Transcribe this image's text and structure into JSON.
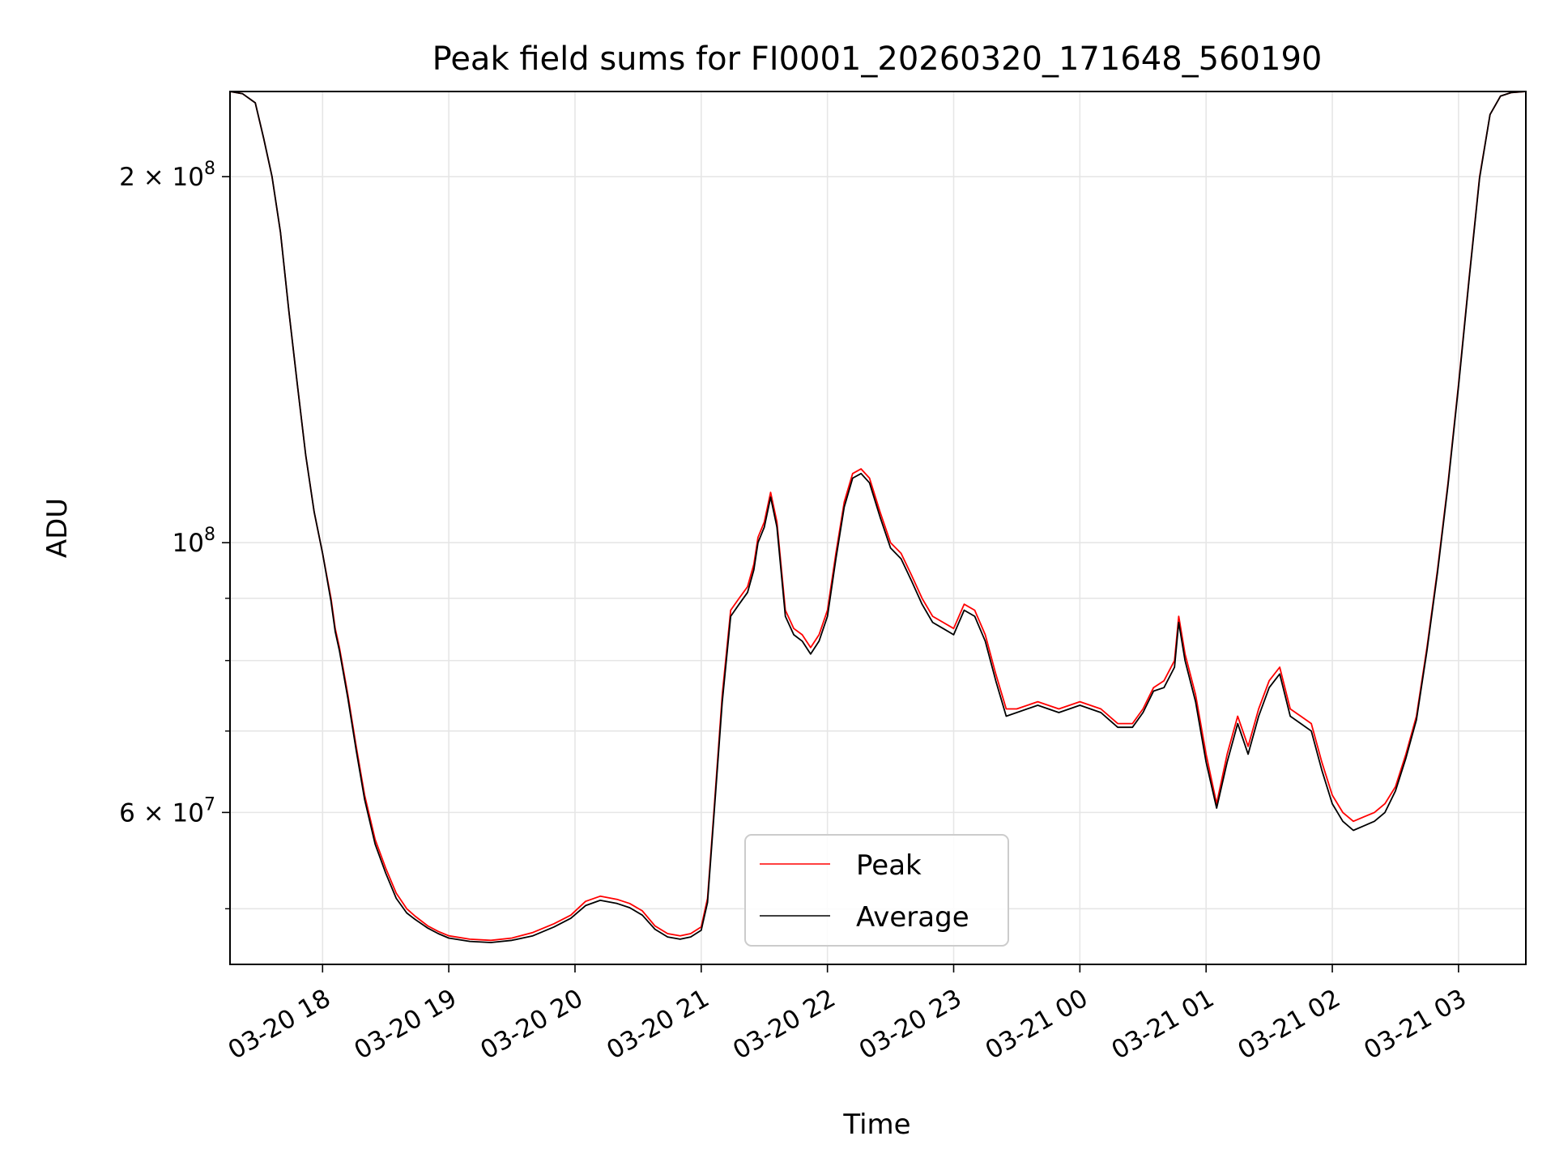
{
  "chart_data": {
    "type": "line",
    "title": "Peak field sums for FI0001_20260320_171648_560190",
    "xlabel": "Time",
    "ylabel": "ADU",
    "yscale": "log",
    "grid": true,
    "legend_position": "lower-center",
    "xlim": [
      "2026-03-20 17:16",
      "2026-03-21 03:32"
    ],
    "ylim": [
      45000000,
      235000000
    ],
    "x_ticks": [
      "2026-03-20 18:00",
      "2026-03-20 19:00",
      "2026-03-20 20:00",
      "2026-03-20 21:00",
      "2026-03-20 22:00",
      "2026-03-20 23:00",
      "2026-03-21 00:00",
      "2026-03-21 01:00",
      "2026-03-21 02:00",
      "2026-03-21 03:00"
    ],
    "x_tick_labels": [
      "03-20 18",
      "03-20 19",
      "03-20 20",
      "03-20 21",
      "03-20 22",
      "03-20 23",
      "03-21 00",
      "03-21 01",
      "03-21 02",
      "03-21 03"
    ],
    "y_major_ticks": [
      {
        "value": 60000000,
        "mantissa": "6",
        "exponent": "7"
      },
      {
        "value": 100000000,
        "mantissa": "",
        "exponent": "8"
      },
      {
        "value": 200000000,
        "mantissa": "2",
        "exponent": "8"
      }
    ],
    "y_minor_ticks": [
      50000000,
      70000000,
      80000000,
      90000000
    ],
    "x": [
      "2026-03-20 17:16",
      "2026-03-20 17:22",
      "2026-03-20 17:28",
      "2026-03-20 17:32",
      "2026-03-20 17:36",
      "2026-03-20 17:40",
      "2026-03-20 17:44",
      "2026-03-20 17:48",
      "2026-03-20 17:52",
      "2026-03-20 17:56",
      "2026-03-20 18:00",
      "2026-03-20 18:04",
      "2026-03-20 18:06",
      "2026-03-20 18:08",
      "2026-03-20 18:12",
      "2026-03-20 18:16",
      "2026-03-20 18:20",
      "2026-03-20 18:25",
      "2026-03-20 18:30",
      "2026-03-20 18:35",
      "2026-03-20 18:40",
      "2026-03-20 18:44",
      "2026-03-20 18:50",
      "2026-03-20 18:55",
      "2026-03-20 19:00",
      "2026-03-20 19:10",
      "2026-03-20 19:20",
      "2026-03-20 19:30",
      "2026-03-20 19:40",
      "2026-03-20 19:50",
      "2026-03-20 19:58",
      "2026-03-20 20:05",
      "2026-03-20 20:12",
      "2026-03-20 20:20",
      "2026-03-20 20:26",
      "2026-03-20 20:32",
      "2026-03-20 20:38",
      "2026-03-20 20:44",
      "2026-03-20 20:50",
      "2026-03-20 20:55",
      "2026-03-20 21:00",
      "2026-03-20 21:03",
      "2026-03-20 21:06",
      "2026-03-20 21:10",
      "2026-03-20 21:14",
      "2026-03-20 21:18",
      "2026-03-20 21:22",
      "2026-03-20 21:25",
      "2026-03-20 21:27",
      "2026-03-20 21:30",
      "2026-03-20 21:33",
      "2026-03-20 21:36",
      "2026-03-20 21:40",
      "2026-03-20 21:44",
      "2026-03-20 21:48",
      "2026-03-20 21:52",
      "2026-03-20 21:56",
      "2026-03-20 22:00",
      "2026-03-20 22:04",
      "2026-03-20 22:08",
      "2026-03-20 22:12",
      "2026-03-20 22:16",
      "2026-03-20 22:20",
      "2026-03-20 22:25",
      "2026-03-20 22:30",
      "2026-03-20 22:35",
      "2026-03-20 22:40",
      "2026-03-20 22:45",
      "2026-03-20 22:50",
      "2026-03-20 22:55",
      "2026-03-20 23:00",
      "2026-03-20 23:05",
      "2026-03-20 23:10",
      "2026-03-20 23:15",
      "2026-03-20 23:20",
      "2026-03-20 23:25",
      "2026-03-20 23:30",
      "2026-03-20 23:40",
      "2026-03-20 23:50",
      "2026-03-21 00:00",
      "2026-03-21 00:10",
      "2026-03-21 00:18",
      "2026-03-21 00:25",
      "2026-03-21 00:30",
      "2026-03-21 00:35",
      "2026-03-21 00:40",
      "2026-03-21 00:45",
      "2026-03-21 00:47",
      "2026-03-21 00:50",
      "2026-03-21 00:55",
      "2026-03-21 01:00",
      "2026-03-21 01:05",
      "2026-03-21 01:10",
      "2026-03-21 01:15",
      "2026-03-21 01:20",
      "2026-03-21 01:25",
      "2026-03-21 01:30",
      "2026-03-21 01:35",
      "2026-03-21 01:40",
      "2026-03-21 01:45",
      "2026-03-21 01:50",
      "2026-03-21 01:55",
      "2026-03-21 02:00",
      "2026-03-21 02:05",
      "2026-03-21 02:10",
      "2026-03-21 02:15",
      "2026-03-21 02:20",
      "2026-03-21 02:25",
      "2026-03-21 02:30",
      "2026-03-21 02:35",
      "2026-03-21 02:40",
      "2026-03-21 02:45",
      "2026-03-21 02:50",
      "2026-03-21 02:55",
      "2026-03-21 03:00",
      "2026-03-21 03:05",
      "2026-03-21 03:10",
      "2026-03-21 03:15",
      "2026-03-21 03:20",
      "2026-03-21 03:25",
      "2026-03-21 03:32"
    ],
    "series": [
      {
        "name": "Peak",
        "color": "#ff0000",
        "values": [
          235000000,
          234000000,
          230000000,
          215000000,
          200000000,
          180000000,
          155000000,
          135000000,
          118000000,
          106000000,
          98000000,
          90000000,
          85000000,
          82000000,
          75000000,
          68000000,
          62000000,
          57000000,
          54000000,
          51500000,
          50000000,
          49300000,
          48400000,
          47900000,
          47500000,
          47200000,
          47100000,
          47300000,
          47800000,
          48600000,
          49400000,
          50700000,
          51200000,
          50900000,
          50500000,
          49800000,
          48400000,
          47700000,
          47500000,
          47700000,
          48300000,
          51000000,
          60000000,
          75000000,
          88000000,
          90000000,
          92000000,
          96000000,
          101000000,
          104000000,
          110000000,
          104000000,
          88000000,
          85000000,
          84000000,
          82000000,
          84000000,
          88000000,
          98000000,
          108000000,
          114000000,
          115000000,
          113000000,
          106000000,
          100000000,
          98000000,
          94000000,
          90000000,
          87000000,
          86000000,
          85000000,
          89000000,
          88000000,
          84000000,
          78000000,
          73000000,
          73000000,
          74000000,
          73000000,
          74000000,
          73000000,
          71000000,
          71000000,
          73000000,
          76000000,
          77000000,
          80000000,
          87000000,
          81000000,
          75000000,
          67000000,
          61000000,
          67000000,
          72000000,
          68000000,
          73000000,
          77000000,
          79000000,
          73000000,
          72000000,
          71000000,
          66000000,
          62000000,
          60000000,
          59000000,
          59500000,
          60000000,
          61000000,
          63000000,
          67000000,
          72000000,
          82000000,
          95000000,
          112000000,
          135000000,
          165000000,
          200000000,
          225000000,
          233000000,
          234500000,
          235000000
        ]
      },
      {
        "name": "Average",
        "color": "#000000",
        "values": [
          235000000,
          234000000,
          230000000,
          215000000,
          200000000,
          180000000,
          155000000,
          135000000,
          118000000,
          106000000,
          98000000,
          89500000,
          84500000,
          81500000,
          74500000,
          67500000,
          61500000,
          56500000,
          53500000,
          51000000,
          49600000,
          49000000,
          48200000,
          47700000,
          47300000,
          47000000,
          46900000,
          47100000,
          47500000,
          48300000,
          49100000,
          50300000,
          50800000,
          50500000,
          50100000,
          49400000,
          48100000,
          47400000,
          47200000,
          47400000,
          48000000,
          50600000,
          59500000,
          74000000,
          87000000,
          89000000,
          91000000,
          95000000,
          100000000,
          103000000,
          109000000,
          103000000,
          87000000,
          84000000,
          83000000,
          81000000,
          83000000,
          87000000,
          97000000,
          107000000,
          113000000,
          114000000,
          112000000,
          105000000,
          99000000,
          97000000,
          93000000,
          89000000,
          86000000,
          85000000,
          84000000,
          88000000,
          87000000,
          83000000,
          77000000,
          72000000,
          72500000,
          73500000,
          72500000,
          73500000,
          72500000,
          70500000,
          70500000,
          72500000,
          75500000,
          76000000,
          79000000,
          86000000,
          80000000,
          74000000,
          66000000,
          60500000,
          66000000,
          71000000,
          67000000,
          72000000,
          76000000,
          78000000,
          72000000,
          71000000,
          70000000,
          65000000,
          61000000,
          59000000,
          58000000,
          58500000,
          59000000,
          60000000,
          62500000,
          66500000,
          71500000,
          81500000,
          94500000,
          111500000,
          134500000,
          164500000,
          199500000,
          225000000,
          233000000,
          234500000,
          235000000
        ]
      }
    ]
  }
}
